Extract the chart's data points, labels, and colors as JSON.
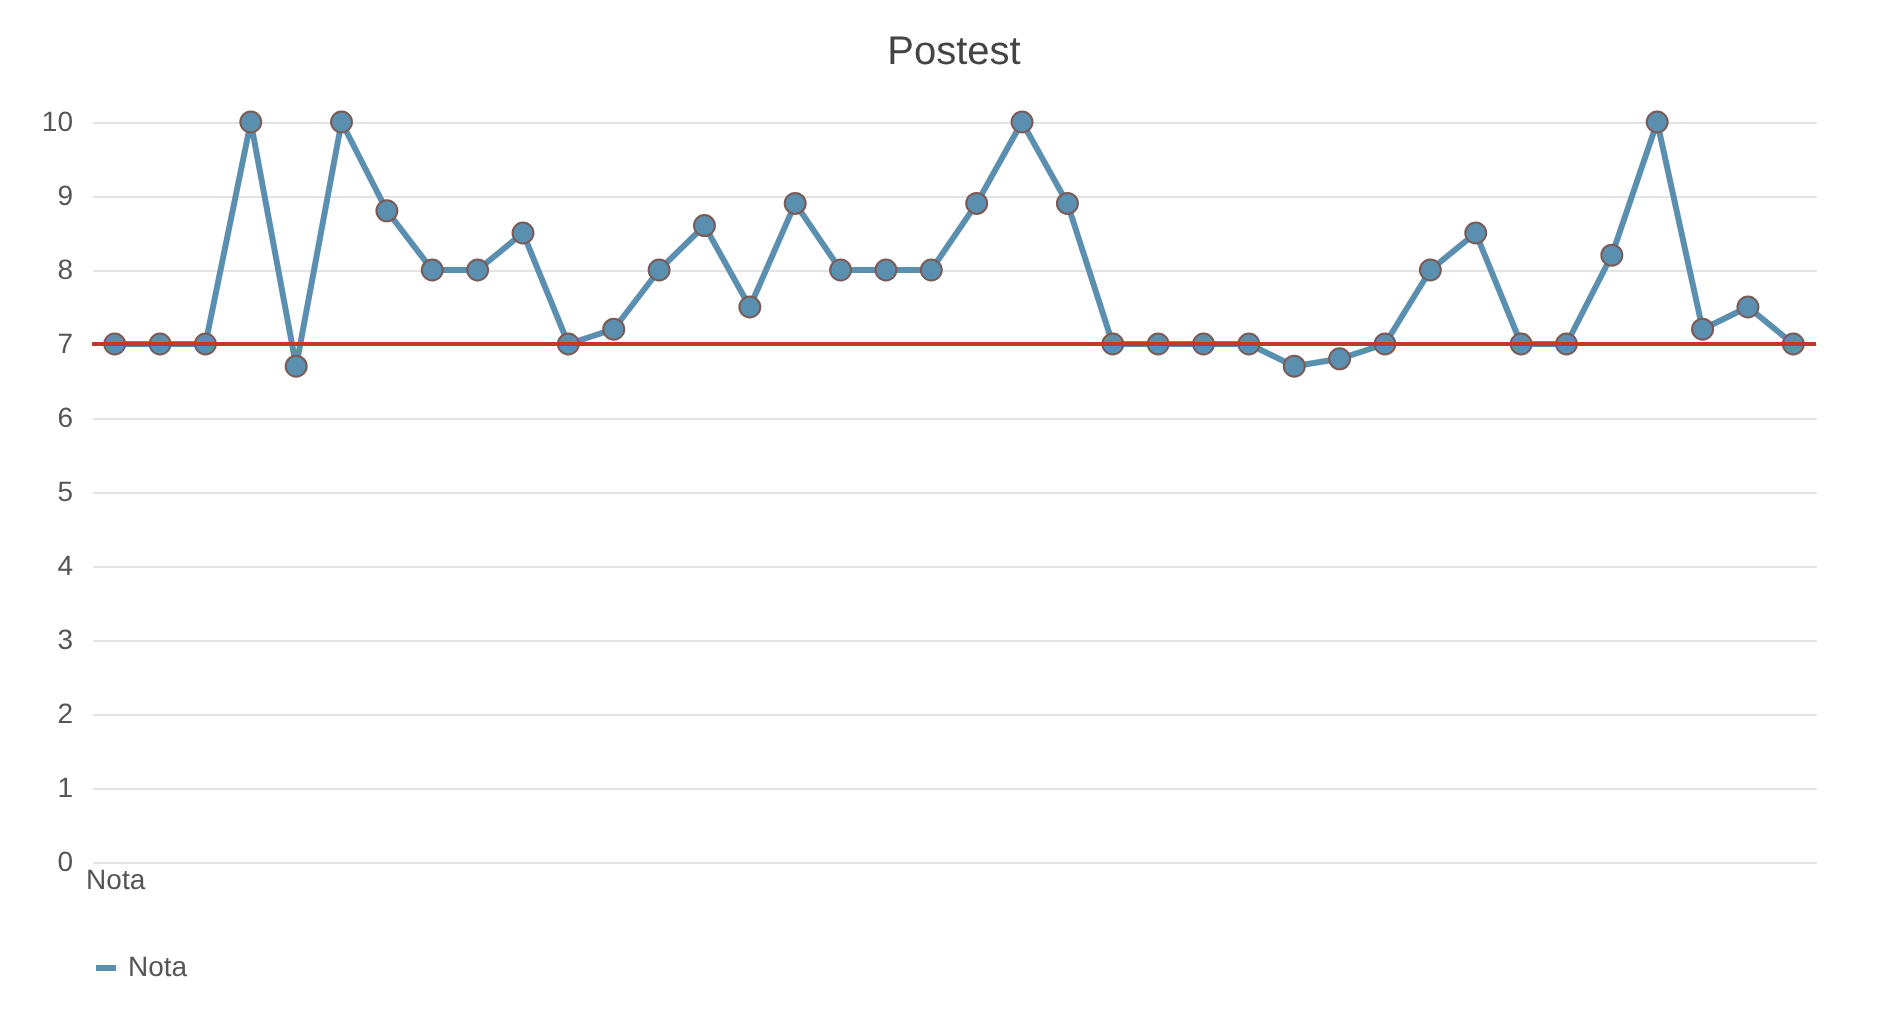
{
  "chart_data": {
    "type": "line",
    "title": "Postest",
    "categories": [
      "Nota",
      null,
      null,
      null,
      null,
      null,
      null,
      null,
      null,
      null,
      null,
      null,
      null,
      null,
      null,
      null,
      null,
      null,
      null,
      null,
      null,
      null,
      null,
      null,
      null,
      null,
      null,
      null,
      null,
      null,
      null,
      null,
      null,
      null,
      null,
      null,
      null,
      null
    ],
    "series": [
      {
        "name": "Nota",
        "color": "#5b8fb0",
        "values": [
          7,
          7,
          7,
          10,
          6.7,
          10,
          8.8,
          8,
          8,
          8.5,
          7,
          7.2,
          8,
          8.6,
          7.5,
          8.9,
          8,
          8,
          8,
          8.9,
          10,
          8.9,
          7,
          7,
          7,
          7,
          6.7,
          6.8,
          7,
          8,
          8.5,
          7,
          7,
          8.2,
          10,
          7.2,
          7.5,
          7
        ]
      }
    ],
    "ylim": [
      0,
      10
    ],
    "yticks": [
      0,
      1,
      2,
      3,
      4,
      5,
      6,
      7,
      8,
      9,
      10
    ],
    "ref_lines": [
      {
        "axis": "y",
        "value": 7,
        "color": "#c0392b"
      }
    ],
    "grid": "y",
    "legend": "bottom",
    "marker": "circle"
  }
}
